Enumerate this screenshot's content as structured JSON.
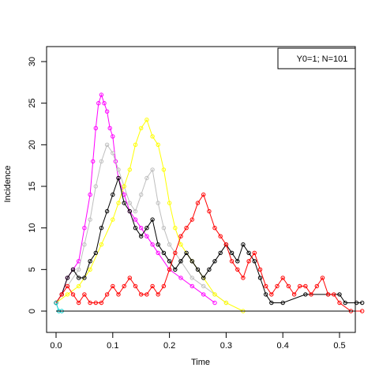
{
  "chart_data": {
    "type": "line",
    "title": "",
    "xlabel": "Time",
    "ylabel": "Incidence",
    "xlim": [
      0,
      0.54
    ],
    "ylim": [
      0,
      30
    ],
    "x_ticks": [
      0.0,
      0.1,
      0.2,
      0.3,
      0.4,
      0.5
    ],
    "x_tick_labels": [
      "0.0",
      "0.1",
      "0.2",
      "0.3",
      "0.4",
      "0.5"
    ],
    "y_ticks": [
      0,
      5,
      10,
      15,
      20,
      25,
      30
    ],
    "y_tick_labels": [
      "0",
      "5",
      "10",
      "15",
      "20",
      "25",
      "30"
    ],
    "legend": {
      "text": "Y0=1; N=101",
      "placement": "top-right"
    },
    "grid": false,
    "marker": "open-circle",
    "series": [
      {
        "color": "#FF00FF",
        "x": [
          0.0,
          0.01,
          0.02,
          0.03,
          0.04,
          0.05,
          0.06,
          0.065,
          0.07,
          0.075,
          0.08,
          0.085,
          0.09,
          0.095,
          0.1,
          0.105,
          0.11,
          0.12,
          0.13,
          0.14,
          0.15,
          0.16,
          0.17,
          0.18,
          0.2,
          0.22,
          0.24,
          0.26,
          0.28
        ],
        "values": [
          1,
          2,
          4,
          5,
          6,
          10,
          14,
          18,
          22,
          25,
          26,
          25,
          24,
          22,
          21,
          18,
          16,
          14,
          12,
          11,
          10,
          9,
          8,
          7,
          5,
          4,
          3,
          2,
          1
        ]
      },
      {
        "color": "#BEBEBE",
        "x": [
          0.0,
          0.02,
          0.04,
          0.05,
          0.06,
          0.07,
          0.08,
          0.09,
          0.1,
          0.11,
          0.12,
          0.13,
          0.14,
          0.15,
          0.16,
          0.17,
          0.18,
          0.19,
          0.2,
          0.22,
          0.24,
          0.26,
          0.28,
          0.3
        ],
        "values": [
          1,
          3,
          5,
          8,
          11,
          15,
          18,
          20,
          19,
          17,
          15,
          13,
          12,
          14,
          16,
          17,
          13,
          10,
          8,
          6,
          4,
          3,
          2,
          1
        ]
      },
      {
        "color": "#FFFF00",
        "x": [
          0.0,
          0.02,
          0.04,
          0.06,
          0.08,
          0.1,
          0.11,
          0.12,
          0.13,
          0.14,
          0.15,
          0.16,
          0.17,
          0.18,
          0.19,
          0.2,
          0.21,
          0.22,
          0.24,
          0.26,
          0.28,
          0.3,
          0.33
        ],
        "values": [
          1,
          2,
          3,
          5,
          8,
          11,
          13,
          15,
          17,
          20,
          22,
          23,
          21,
          20,
          17,
          13,
          10,
          8,
          6,
          4,
          2,
          1,
          0
        ]
      },
      {
        "color": "#000000",
        "x": [
          0.0,
          0.01,
          0.02,
          0.03,
          0.04,
          0.05,
          0.06,
          0.07,
          0.08,
          0.09,
          0.1,
          0.11,
          0.12,
          0.13,
          0.14,
          0.15,
          0.16,
          0.17,
          0.18,
          0.19,
          0.2,
          0.21,
          0.22,
          0.23,
          0.24,
          0.25,
          0.26,
          0.27,
          0.28,
          0.29,
          0.3,
          0.31,
          0.32,
          0.33,
          0.34,
          0.35,
          0.36,
          0.37,
          0.38,
          0.4,
          0.44,
          0.48,
          0.5,
          0.51,
          0.53,
          0.54
        ],
        "values": [
          1,
          2,
          4,
          5,
          4,
          4,
          6,
          7,
          10,
          12,
          14,
          16,
          13,
          12,
          10,
          9,
          10,
          11,
          8,
          7,
          6,
          5,
          6,
          7,
          6,
          5,
          4,
          5,
          6,
          7,
          8,
          7,
          6,
          8,
          7,
          6,
          4,
          2,
          1,
          1,
          2,
          2,
          2,
          1,
          1,
          1
        ]
      },
      {
        "color": "#FF0000",
        "x": [
          0.0,
          0.01,
          0.02,
          0.03,
          0.04,
          0.05,
          0.06,
          0.07,
          0.08,
          0.09,
          0.1,
          0.11,
          0.12,
          0.13,
          0.14,
          0.15,
          0.16,
          0.17,
          0.18,
          0.19,
          0.2,
          0.21,
          0.22,
          0.23,
          0.24,
          0.25,
          0.26,
          0.27,
          0.28,
          0.29,
          0.3,
          0.31,
          0.32,
          0.33,
          0.34,
          0.35,
          0.36,
          0.37,
          0.38,
          0.39,
          0.4,
          0.41,
          0.42,
          0.43,
          0.44,
          0.45,
          0.46,
          0.47,
          0.48,
          0.49,
          0.5,
          0.52,
          0.54
        ],
        "values": [
          1,
          2,
          3,
          2,
          1,
          2,
          1,
          1,
          1,
          2,
          3,
          2,
          3,
          4,
          3,
          2,
          2,
          3,
          2,
          3,
          5,
          7,
          9,
          10,
          11,
          13,
          14,
          12,
          10,
          9,
          8,
          6,
          5,
          4,
          6,
          7,
          5,
          3,
          2,
          3,
          4,
          3,
          2,
          3,
          3,
          2,
          3,
          4,
          2,
          2,
          1,
          0,
          0
        ]
      },
      {
        "color": "#00CDCD",
        "x": [
          0.0,
          0.005,
          0.01
        ],
        "values": [
          1,
          0,
          0
        ]
      }
    ]
  }
}
